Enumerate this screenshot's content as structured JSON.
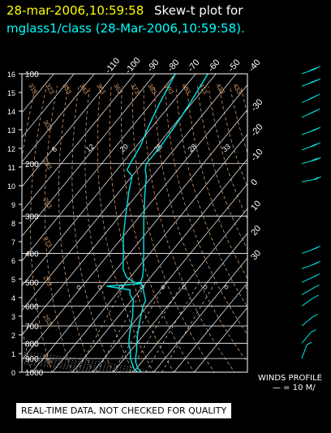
{
  "header": {
    "date_title": "28-mar-2006,10:59:58",
    "plot_title": "Skew-t plot for",
    "subtitle": "mglass1/class (28-Mar-2006,10:59:58)."
  },
  "footer": {
    "disclaimer": "REAL-TIME DATA, NOT CHECKED FOR QUALITY",
    "wind_profile_label": "WINDS PROFILE",
    "wind_scale": "— = 10 M/"
  },
  "colors": {
    "background": "#000000",
    "temperature": "#00e5e5",
    "dewpoint": "#00e5e5",
    "isotherm": "#ffffff",
    "isobar": "#ffffff",
    "dry_adiabat": "#d49a6a",
    "moist_adiabat": "#ffffff",
    "mixing_ratio": "#ffffff",
    "wind_barb": "#00e5e5",
    "header_date": "#ffff00",
    "header_text": "#ffffff",
    "subtitle": "#00ffff"
  },
  "chart_data": {
    "type": "skew-t",
    "pressure_levels": [
      100,
      200,
      300,
      400,
      500,
      600,
      700,
      800,
      900,
      1000
    ],
    "height_km_ticks": [
      "16",
      "15",
      "14",
      "13",
      "12",
      "11",
      "10",
      "9",
      "8",
      "7",
      "6",
      "5",
      "4",
      "3",
      "2",
      "1",
      "0"
    ],
    "top_temp_ticks": [
      "-110",
      "-100",
      "-90",
      "-80",
      "-70",
      "-60",
      "-50",
      "-40"
    ],
    "right_temp_ticks": [
      "-30",
      "-20",
      "-10",
      "0",
      "10",
      "20",
      "30"
    ],
    "theta_labels": [
      "313",
      "323",
      "333",
      "343",
      "353",
      "363",
      "373",
      "383",
      "393",
      "403",
      "413",
      "423",
      "433",
      "303",
      "293",
      "283",
      "273",
      "263",
      "253",
      "243"
    ],
    "mixing_ratio_labels": [
      "6",
      "12",
      "20",
      "25",
      "28",
      "33"
    ],
    "temperature_profile": [
      [
        1000,
        24
      ],
      [
        975,
        21
      ],
      [
        950,
        19
      ],
      [
        925,
        17
      ],
      [
        900,
        15.5
      ],
      [
        850,
        13
      ],
      [
        800,
        10
      ],
      [
        750,
        7
      ],
      [
        700,
        4
      ],
      [
        650,
        1
      ],
      [
        600,
        -2
      ],
      [
        575,
        -3
      ],
      [
        550,
        -6
      ],
      [
        525,
        -9
      ],
      [
        510,
        -11
      ],
      [
        500,
        -13
      ],
      [
        480,
        -14
      ],
      [
        450,
        -17
      ],
      [
        400,
        -23
      ],
      [
        350,
        -30
      ],
      [
        300,
        -38
      ],
      [
        250,
        -47
      ],
      [
        220,
        -53
      ],
      [
        210,
        -56
      ],
      [
        200,
        -58
      ],
      [
        175,
        -58
      ],
      [
        150,
        -59
      ],
      [
        125,
        -61
      ],
      [
        100,
        -64
      ]
    ],
    "dewpoint_profile": [
      [
        1000,
        22
      ],
      [
        975,
        19
      ],
      [
        950,
        17
      ],
      [
        925,
        15
      ],
      [
        900,
        13
      ],
      [
        850,
        10
      ],
      [
        800,
        6
      ],
      [
        750,
        3
      ],
      [
        700,
        0
      ],
      [
        650,
        -3
      ],
      [
        600,
        -7
      ],
      [
        575,
        -9
      ],
      [
        550,
        -13
      ],
      [
        530,
        -15
      ],
      [
        515,
        -28
      ],
      [
        505,
        -12
      ],
      [
        500,
        -16
      ],
      [
        480,
        -22
      ],
      [
        450,
        -27
      ],
      [
        400,
        -33
      ],
      [
        350,
        -40
      ],
      [
        300,
        -47
      ],
      [
        250,
        -55
      ],
      [
        220,
        -60
      ],
      [
        210,
        -65
      ],
      [
        200,
        -66
      ],
      [
        175,
        -68
      ],
      [
        150,
        -72
      ],
      [
        125,
        -76
      ],
      [
        100,
        -80
      ]
    ],
    "wind_barbs": [
      [
        100,
        250,
        40
      ],
      [
        110,
        250,
        35
      ],
      [
        125,
        245,
        40
      ],
      [
        140,
        245,
        35
      ],
      [
        160,
        250,
        30
      ],
      [
        180,
        250,
        30
      ],
      [
        200,
        255,
        25
      ],
      [
        230,
        260,
        20
      ],
      [
        400,
        250,
        15
      ],
      [
        450,
        250,
        15
      ],
      [
        500,
        245,
        15
      ],
      [
        550,
        240,
        10
      ],
      [
        600,
        235,
        10
      ],
      [
        700,
        230,
        10
      ],
      [
        800,
        220,
        5
      ],
      [
        900,
        200,
        5
      ]
    ]
  }
}
